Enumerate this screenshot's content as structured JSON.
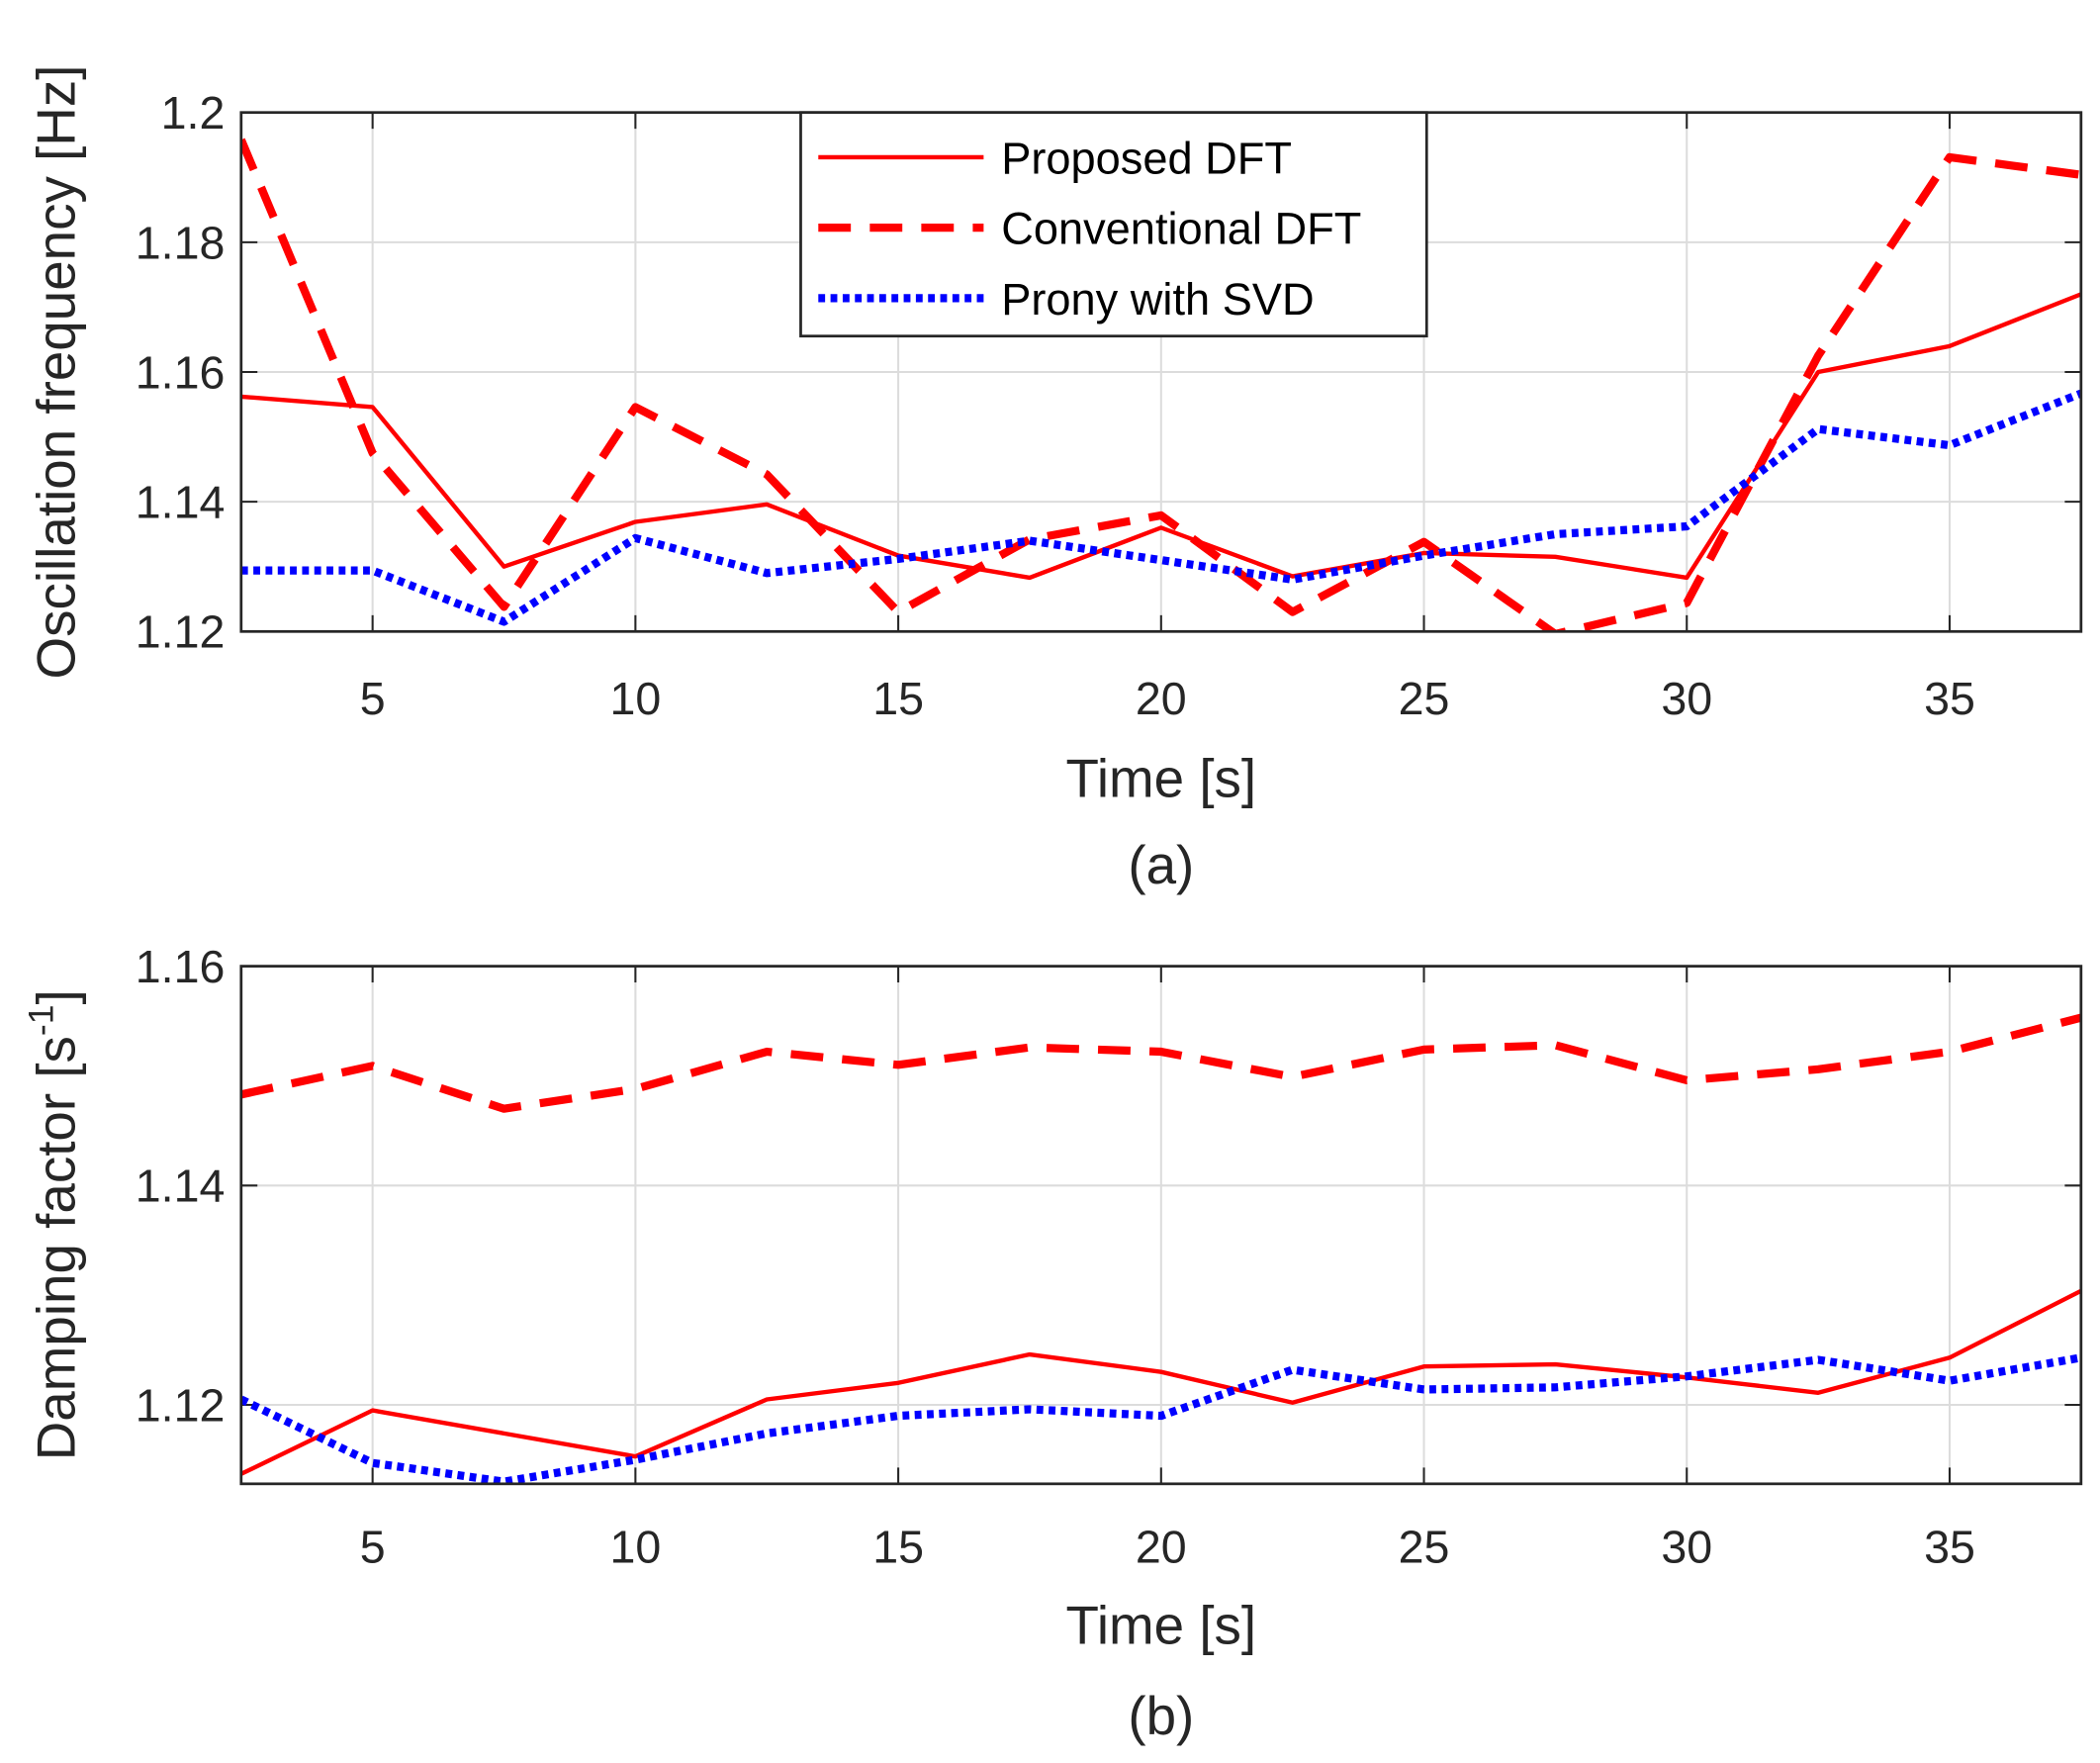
{
  "colors": {
    "proposed": "#ff0000",
    "conventional": "#ff0000",
    "prony": "#0000ff",
    "grid": "#dcdcdc",
    "axis": "#262626"
  },
  "chart_data": [
    {
      "type": "line",
      "caption": "(a)",
      "xlabel": "Time [s]",
      "ylabel": "Oscillation frequency [Hz]",
      "ylabel_sup": "",
      "ylabel_end": "",
      "xlim": [
        2.5,
        37.5
      ],
      "ylim": [
        1.12,
        1.2
      ],
      "xticks": [
        5,
        10,
        15,
        20,
        25,
        30,
        35
      ],
      "xtick_labels": [
        "5",
        "10",
        "15",
        "20",
        "25",
        "30",
        "35"
      ],
      "yticks": [
        1.12,
        1.14,
        1.16,
        1.18,
        1.2
      ],
      "ytick_labels": [
        "1.12",
        "1.14",
        "1.16",
        "1.18",
        "1.2"
      ],
      "grid": true,
      "legend": {
        "placement": "top-center",
        "entries": [
          "Proposed DFT",
          "Conventional DFT",
          "Prony with SVD"
        ]
      },
      "x": [
        2.5,
        5,
        7.5,
        10,
        12.5,
        15,
        17.5,
        20,
        22.5,
        25,
        27.5,
        30,
        32.5,
        35,
        37.5
      ],
      "series": [
        {
          "name": "Proposed DFT",
          "style": "solid",
          "values": [
            1.1562,
            1.1546,
            1.13,
            1.1369,
            1.1396,
            1.1317,
            1.1283,
            1.136,
            1.1285,
            1.1321,
            1.1315,
            1.1283,
            1.16,
            1.164,
            1.172
          ]
        },
        {
          "name": "Conventional DFT",
          "style": "dashed",
          "values": [
            1.1958,
            1.1475,
            1.1238,
            1.1546,
            1.1442,
            1.123,
            1.1342,
            1.1379,
            1.123,
            1.1338,
            1.1196,
            1.1244,
            1.1625,
            1.1931,
            1.1904
          ]
        },
        {
          "name": "Prony with SVD",
          "style": "dotted",
          "values": [
            1.1294,
            1.1294,
            1.1215,
            1.1344,
            1.129,
            1.1312,
            1.134,
            1.131,
            1.128,
            1.1317,
            1.135,
            1.1362,
            1.1512,
            1.1487,
            1.1567
          ]
        }
      ]
    },
    {
      "type": "line",
      "caption": "(b)",
      "xlabel": "Time [s]",
      "ylabel": "Damping factor [s",
      "ylabel_sup": "-1",
      "ylabel_end": "]",
      "xlim": [
        2.5,
        37.5
      ],
      "ylim": [
        1.1128,
        1.16
      ],
      "xticks": [
        5,
        10,
        15,
        20,
        25,
        30,
        35
      ],
      "xtick_labels": [
        "5",
        "10",
        "15",
        "20",
        "25",
        "30",
        "35"
      ],
      "yticks": [
        1.12,
        1.14,
        1.16
      ],
      "ytick_labels": [
        "1.12",
        "1.14",
        "1.16"
      ],
      "grid": true,
      "x": [
        2.5,
        5,
        7.5,
        10,
        12.5,
        15,
        17.5,
        20,
        22.5,
        25,
        27.5,
        30,
        32.5,
        35,
        37.5
      ],
      "series": [
        {
          "name": "Proposed DFT",
          "style": "solid",
          "values": [
            1.1137,
            1.1195,
            1.1174,
            1.1153,
            1.1205,
            1.122,
            1.1246,
            1.123,
            1.1202,
            1.1235,
            1.1237,
            1.1225,
            1.1211,
            1.1243,
            1.1304
          ]
        },
        {
          "name": "Conventional DFT",
          "style": "dashed",
          "values": [
            1.1483,
            1.1509,
            1.147,
            1.1488,
            1.1522,
            1.151,
            1.1526,
            1.1522,
            1.1499,
            1.1524,
            1.1528,
            1.1496,
            1.1506,
            1.1522,
            1.1553
          ]
        },
        {
          "name": "Prony with SVD",
          "style": "dotted",
          "values": [
            1.1205,
            1.1147,
            1.113,
            1.115,
            1.1174,
            1.119,
            1.1196,
            1.119,
            1.1232,
            1.1214,
            1.1216,
            1.1226,
            1.1241,
            1.1222,
            1.1243
          ]
        }
      ]
    }
  ]
}
